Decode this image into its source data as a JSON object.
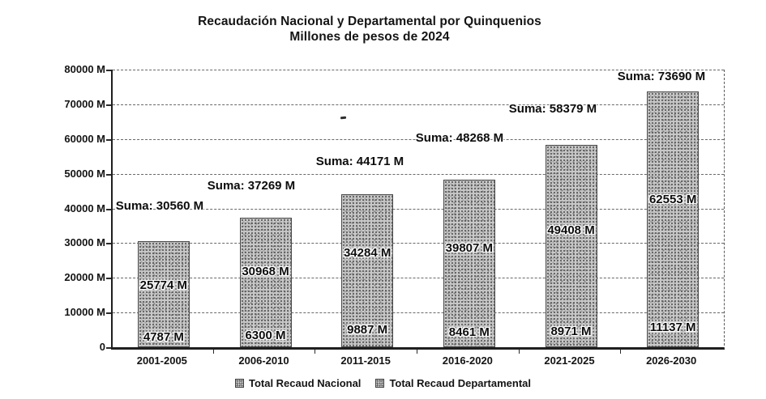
{
  "title": {
    "line1": "Recaudación Nacional y Departamental por Quinquenios",
    "line2": "Millones de pesos de 2024"
  },
  "y_axis": {
    "tick_labels": [
      "80000 M",
      "70000 M",
      "60000 M",
      "50000 M",
      "40000 M",
      "30000 M",
      "20000 M",
      "10000 M",
      "0"
    ],
    "tick_values": [
      80000,
      70000,
      60000,
      50000,
      40000,
      30000,
      20000,
      10000,
      0
    ],
    "min": 0,
    "max": 80000
  },
  "legend": {
    "items": [
      {
        "label": "Total Recaud Nacional"
      },
      {
        "label": "Total Recaud Departamental"
      }
    ]
  },
  "chart_data": {
    "type": "bar",
    "stacked": true,
    "title": "Recaudación Nacional y Departamental por Quinquenios",
    "subtitle": "Millones de pesos de 2024",
    "categories": [
      "2001-2005",
      "2006-2010",
      "2011-2015",
      "2016-2020",
      "2021-2025",
      "2026-2030"
    ],
    "series": [
      {
        "name": "Total Recaud Nacional",
        "stack_position": "top",
        "values": [
          25774,
          30968,
          34284,
          39807,
          49408,
          62553
        ]
      },
      {
        "name": "Total Recaud Departamental",
        "stack_position": "bottom",
        "values": [
          4787,
          6300,
          9887,
          8461,
          8971,
          11137
        ]
      }
    ],
    "totals": [
      30560,
      37269,
      44171,
      48268,
      58379,
      73690
    ],
    "bar_labels": {
      "suma": [
        "Suma: 30560 M",
        "Suma: 37269 M",
        "Suma: 44171 M",
        "Suma: 48268 M",
        "Suma: 58379 M",
        "Suma: 73690 M"
      ],
      "nacional": [
        "25774 M",
        "30968 M",
        "34284 M",
        "39807 M",
        "49408 M",
        "62553 M"
      ],
      "departamental": [
        "4787 M",
        "6300 M",
        "9887 M",
        "8461 M",
        "8971 M",
        "11137 M"
      ]
    },
    "units": "M (millones de pesos de 2024)",
    "xlabel": "",
    "ylabel": "",
    "ylim": [
      0,
      80000
    ],
    "grid": true,
    "legend_position": "bottom"
  },
  "colors": {
    "ink": "#141414",
    "grid": "#4f4f4f",
    "bar_fill": "#c8c8c8",
    "bar_speckle": "#565656",
    "background": "#ffffff"
  }
}
